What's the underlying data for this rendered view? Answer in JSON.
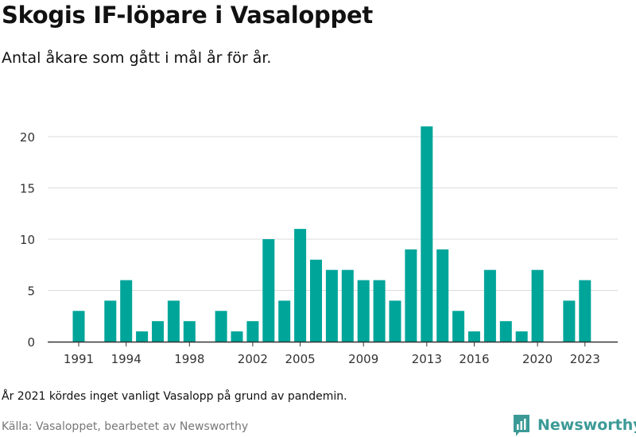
{
  "page": {
    "title": "Skogis IF-löpare i Vasaloppet",
    "subtitle": "Antal åkare som gått i mål år för år.",
    "note": "År 2021 kördes inget vanligt Vasalopp på grund av pandemin.",
    "source": "Källa: Vasaloppet, bearbetet av Newsworthy",
    "brand": "Newsworthy"
  },
  "colors": {
    "bar": "#00a59a",
    "brand": "#3c9a96",
    "grid": "#dcdcdc",
    "axis": "#333333"
  },
  "chart_data": {
    "type": "bar",
    "x": [
      1991,
      1992,
      1993,
      1994,
      1995,
      1996,
      1997,
      1998,
      1999,
      2000,
      2001,
      2002,
      2003,
      2004,
      2005,
      2006,
      2007,
      2008,
      2009,
      2010,
      2011,
      2012,
      2013,
      2014,
      2015,
      2016,
      2017,
      2018,
      2019,
      2020,
      2021,
      2022,
      2023
    ],
    "values": [
      3,
      0,
      4,
      6,
      1,
      2,
      4,
      2,
      0,
      3,
      1,
      2,
      10,
      4,
      11,
      8,
      7,
      7,
      6,
      6,
      4,
      9,
      21,
      9,
      3,
      1,
      7,
      2,
      1,
      7,
      0,
      4,
      6
    ],
    "x_tick_labels": [
      1991,
      1994,
      1998,
      2002,
      2005,
      2009,
      2013,
      2016,
      2020,
      2023
    ],
    "y_ticks": [
      0,
      5,
      10,
      15,
      20
    ],
    "ylim": [
      0,
      21
    ],
    "grid": true,
    "legend": "none"
  }
}
